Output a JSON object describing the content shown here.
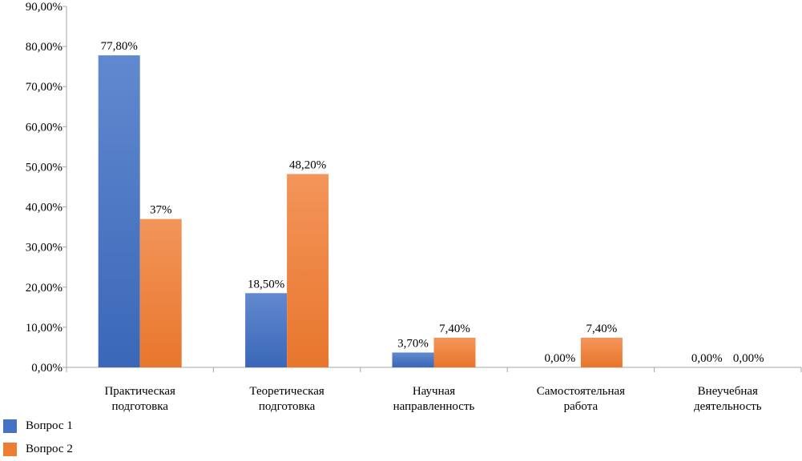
{
  "chart_data": {
    "type": "bar",
    "title": "",
    "xlabel": "",
    "ylabel": "",
    "ylim": [
      0,
      90
    ],
    "y_ticks": [
      "0,00%",
      "10,00%",
      "20,00%",
      "30,00%",
      "40,00%",
      "50,00%",
      "60,00%",
      "70,00%",
      "80,00%",
      "90,00%"
    ],
    "categories": [
      [
        "Практическая",
        "подготовка"
      ],
      [
        "Теоретическая",
        "подготовка"
      ],
      [
        "Научная",
        "направленность"
      ],
      [
        "Самостоятельная",
        "работа"
      ],
      [
        "Внеучебная",
        "деятельность"
      ]
    ],
    "series": [
      {
        "name": "Вопрос 1",
        "color": "#4472c4",
        "values": [
          77.8,
          18.5,
          3.7,
          0,
          0
        ],
        "labels": [
          "77,80%",
          "18,50%",
          "3,70%",
          "0,00%",
          "0,00%"
        ]
      },
      {
        "name": "Вопрос 2",
        "color": "#ed7d31",
        "values": [
          37,
          48.2,
          7.4,
          7.4,
          0
        ],
        "labels": [
          "37%",
          "48,20%",
          "7,40%",
          "7,40%",
          "0,00%"
        ]
      }
    ],
    "grid": false,
    "legend_position": "bottom-left"
  }
}
